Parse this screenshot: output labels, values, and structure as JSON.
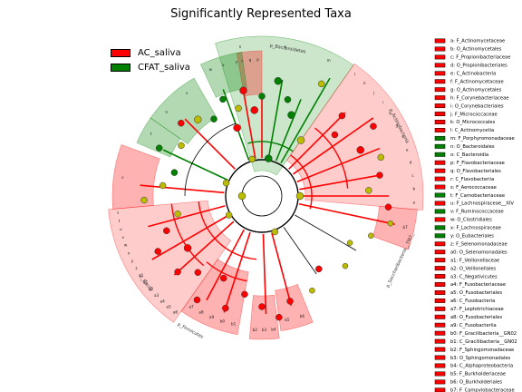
{
  "chart_data": {
    "type": "cladogram",
    "title": "Significantly Represented Taxa",
    "colors": {
      "AC_saliva": "#ff0000",
      "CFAT_saliva": "#008000",
      "nonsig": "#bbbb00"
    },
    "legend": {
      "placement": "top-left",
      "entries": [
        {
          "label": "AC_saliva",
          "color": "#ff0000"
        },
        {
          "label": "CFAT_saliva",
          "color": "#008000"
        }
      ]
    },
    "clade_labels": [
      {
        "text": "p_Bacteroidetes",
        "group": "CFAT_saliva",
        "angle": -80
      },
      {
        "text": "p_Actinobacteria",
        "group": "AC_saliva",
        "angle": -27
      },
      {
        "text": "p_Saccharibacteria__TM7_",
        "group": "AC_saliva",
        "angle": 25
      },
      {
        "text": "p_Firmicutes",
        "group": "AC_saliva",
        "angle": 118
      },
      {
        "text": "c_Bacilli",
        "group": "AC_saliva",
        "angle": 143
      }
    ],
    "taxa": [
      {
        "key": "a",
        "label": "a: F_Actinomycetaceae",
        "group": "AC_saliva"
      },
      {
        "key": "b",
        "label": "b: O_Actinomycetales",
        "group": "AC_saliva"
      },
      {
        "key": "c",
        "label": "c: F_Propionibacteriaceae",
        "group": "AC_saliva"
      },
      {
        "key": "d",
        "label": "d: O_Propionibacteriales",
        "group": "AC_saliva"
      },
      {
        "key": "e",
        "label": "e: C_Actinobacteria",
        "group": "AC_saliva"
      },
      {
        "key": "f",
        "label": "f: F_Actinomycetaceae",
        "group": "AC_saliva"
      },
      {
        "key": "g",
        "label": "g: O_Actinomycetales",
        "group": "AC_saliva"
      },
      {
        "key": "h",
        "label": "h: F_Corynebacteriaceae",
        "group": "AC_saliva"
      },
      {
        "key": "i",
        "label": "i: O_Corynebacteriales",
        "group": "AC_saliva"
      },
      {
        "key": "j",
        "label": "j: F_Micrococcaceae",
        "group": "AC_saliva"
      },
      {
        "key": "k",
        "label": "k: O_Micrococcales",
        "group": "AC_saliva"
      },
      {
        "key": "l",
        "label": "l: C_Actinomycetia",
        "group": "AC_saliva"
      },
      {
        "key": "m",
        "label": "m: F_Porphyromonadaceae",
        "group": "CFAT_saliva"
      },
      {
        "key": "n",
        "label": "n: O_Bacteroidales",
        "group": "CFAT_saliva"
      },
      {
        "key": "o",
        "label": "o: C_Bacteroidia",
        "group": "CFAT_saliva"
      },
      {
        "key": "p",
        "label": "p: F_Flavobacteriaceae",
        "group": "AC_saliva"
      },
      {
        "key": "q",
        "label": "q: O_Flavobacteriales",
        "group": "AC_saliva"
      },
      {
        "key": "r",
        "label": "r: C_Flavobacteriia",
        "group": "AC_saliva"
      },
      {
        "key": "s",
        "label": "s: F_Aerococcaceae",
        "group": "AC_saliva"
      },
      {
        "key": "t",
        "label": "t: F_Carnobacteriaceae",
        "group": "CFAT_saliva"
      },
      {
        "key": "u",
        "label": "u: F_Lachnospiraceae__XIV",
        "group": "AC_saliva"
      },
      {
        "key": "v",
        "label": "v: F_Ruminococcaceae",
        "group": "CFAT_saliva"
      },
      {
        "key": "w",
        "label": "w: O_Clostridiales",
        "group": "AC_saliva"
      },
      {
        "key": "x",
        "label": "x: F_Lachnospiraceae",
        "group": "CFAT_saliva"
      },
      {
        "key": "y",
        "label": "y: O_Eubacteriales",
        "group": "CFAT_saliva"
      },
      {
        "key": "z",
        "label": "z: F_Selenomonadaceae",
        "group": "AC_saliva"
      },
      {
        "key": "a0",
        "label": "a0: O_Selenomonadales",
        "group": "AC_saliva"
      },
      {
        "key": "a1",
        "label": "a1: F_Veillonellaceae",
        "group": "AC_saliva"
      },
      {
        "key": "a2",
        "label": "a2: O_Veillonellales",
        "group": "AC_saliva"
      },
      {
        "key": "a3",
        "label": "a3: C_Negativicutes",
        "group": "AC_saliva"
      },
      {
        "key": "a4",
        "label": "a4: F_Fusobacteriaceae",
        "group": "AC_saliva"
      },
      {
        "key": "a5",
        "label": "a5: O_Fusobacteriales",
        "group": "AC_saliva"
      },
      {
        "key": "a6",
        "label": "a6: C_Fusobacteria",
        "group": "AC_saliva"
      },
      {
        "key": "a7",
        "label": "a7: F_Leptotrichiaceae",
        "group": "AC_saliva"
      },
      {
        "key": "a8",
        "label": "a8: O_Fusobacteriales",
        "group": "AC_saliva"
      },
      {
        "key": "a9",
        "label": "a9: C_Fusobacteriia",
        "group": "AC_saliva"
      },
      {
        "key": "b0",
        "label": "b0: F_Gracilibacteria__GN02",
        "group": "AC_saliva"
      },
      {
        "key": "b1",
        "label": "b1: C_Gracilibacteria__GN02",
        "group": "AC_saliva"
      },
      {
        "key": "b2",
        "label": "b2: F_Sphingomonadaceae",
        "group": "AC_saliva"
      },
      {
        "key": "b3",
        "label": "b3: O_Sphingomonadales",
        "group": "AC_saliva"
      },
      {
        "key": "b4",
        "label": "b4: C_Alphaproteobacteria",
        "group": "AC_saliva"
      },
      {
        "key": "b5",
        "label": "b5: F_Burkholderiaceae",
        "group": "AC_saliva"
      },
      {
        "key": "b6",
        "label": "b6: O_Burkholderiales",
        "group": "AC_saliva"
      },
      {
        "key": "b7",
        "label": "b7: F_Campylobacteraceae",
        "group": "AC_saliva"
      }
    ]
  }
}
